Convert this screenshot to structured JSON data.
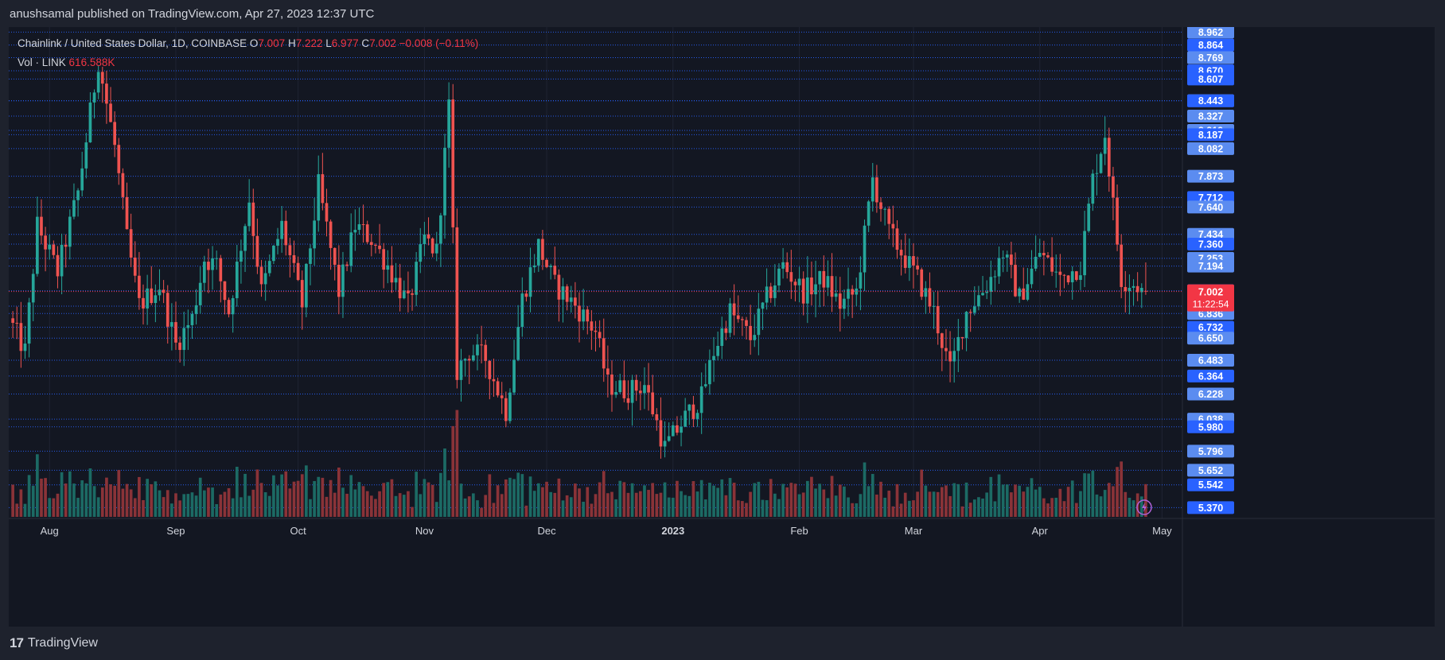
{
  "header": {
    "published_line": "anushsamal published on TradingView.com, Apr 27, 2023 12:37 UTC"
  },
  "legend": {
    "symbol": "Chainlink / United States Dollar, 1D, COINBASE",
    "o_label": "O",
    "o_value": "7.007",
    "h_label": "H",
    "h_value": "7.222",
    "l_label": "L",
    "l_value": "6.977",
    "c_label": "C",
    "c_value": "7.002",
    "change": "−0.008 (−0.11%)",
    "vol_label": "Vol · LINK",
    "vol_value": "616.588K"
  },
  "footer": {
    "brand": "TradingView",
    "logo_text": "17"
  },
  "colors": {
    "background": "#131722",
    "page_background": "#1e222d",
    "up": "#26a69a",
    "down": "#ef5350",
    "up_volume": "#1c6a64",
    "down_volume": "#8a3338",
    "level_line": "#2962ff",
    "price_label_bg": "#2962ff",
    "price_label_bg_alt": "#5b8cf0",
    "current_price_bg": "#f23645",
    "grid": "#1f2433",
    "text": "#d1d4dc"
  },
  "chart_data": {
    "type": "candlestick",
    "title": "Chainlink / United States Dollar, 1D, COINBASE",
    "currency_label": "USD",
    "ylim": [
      5.3,
      9.0
    ],
    "current_price_label": "7.002",
    "countdown_label": "11:22:54",
    "x_ticks": [
      {
        "label": "Aug",
        "date": "2022-08-01",
        "bold": false
      },
      {
        "label": "Sep",
        "date": "2022-09-01",
        "bold": false
      },
      {
        "label": "Oct",
        "date": "2022-10-01",
        "bold": false
      },
      {
        "label": "Nov",
        "date": "2022-11-01",
        "bold": false
      },
      {
        "label": "Dec",
        "date": "2022-12-01",
        "bold": false
      },
      {
        "label": "2023",
        "date": "2023-01-01",
        "bold": true
      },
      {
        "label": "Feb",
        "date": "2023-02-01",
        "bold": false
      },
      {
        "label": "Mar",
        "date": "2023-03-01",
        "bold": false
      },
      {
        "label": "Apr",
        "date": "2023-04-01",
        "bold": false
      },
      {
        "label": "May",
        "date": "2023-05-01",
        "bold": false
      }
    ],
    "horizontal_levels": [
      8.962,
      8.864,
      8.769,
      8.67,
      8.607,
      8.444,
      8.443,
      8.327,
      8.219,
      8.187,
      8.082,
      7.873,
      7.712,
      7.64,
      7.434,
      7.36,
      7.253,
      7.194,
      7.008,
      6.892,
      6.836,
      6.732,
      6.65,
      6.483,
      6.364,
      6.228,
      6.038,
      5.98,
      5.796,
      5.652,
      5.542,
      5.37
    ],
    "price_labels": [
      {
        "value": "8.962",
        "style": "light"
      },
      {
        "value": "8.864",
        "style": "dark"
      },
      {
        "value": "8.769",
        "style": "light"
      },
      {
        "value": "8.670",
        "style": "dark"
      },
      {
        "value": "8.607",
        "style": "dark"
      },
      {
        "value": "8.444",
        "style": "light"
      },
      {
        "value": "8.443",
        "style": "dark"
      },
      {
        "value": "8.327",
        "style": "light"
      },
      {
        "value": "8.219",
        "style": "light"
      },
      {
        "value": "8.187",
        "style": "dark"
      },
      {
        "value": "8.082",
        "style": "light"
      },
      {
        "value": "7.873",
        "style": "light"
      },
      {
        "value": "7.712",
        "style": "dark"
      },
      {
        "value": "7.640",
        "style": "light"
      },
      {
        "value": "7.434",
        "style": "light"
      },
      {
        "value": "7.360",
        "style": "dark"
      },
      {
        "value": "7.253",
        "style": "light"
      },
      {
        "value": "7.194",
        "style": "light"
      },
      {
        "value": "7.008",
        "style": "dark"
      },
      {
        "value": "6.892",
        "style": "light"
      },
      {
        "value": "6.836",
        "style": "light"
      },
      {
        "value": "6.732",
        "style": "dark"
      },
      {
        "value": "6.650",
        "style": "light"
      },
      {
        "value": "6.483",
        "style": "light"
      },
      {
        "value": "6.364",
        "style": "dark"
      },
      {
        "value": "6.228",
        "style": "light"
      },
      {
        "value": "6.038",
        "style": "light"
      },
      {
        "value": "5.980",
        "style": "dark"
      },
      {
        "value": "5.796",
        "style": "light"
      },
      {
        "value": "5.652",
        "style": "light"
      },
      {
        "value": "5.542",
        "style": "dark"
      },
      {
        "value": "5.370",
        "style": "dark"
      }
    ],
    "anchors": [
      {
        "date": "2022-07-23",
        "close": 6.8
      },
      {
        "date": "2022-07-27",
        "close": 6.55
      },
      {
        "date": "2022-07-30",
        "close": 7.5
      },
      {
        "date": "2022-08-04",
        "close": 7.15
      },
      {
        "date": "2022-08-09",
        "close": 7.75
      },
      {
        "date": "2022-08-14",
        "close": 8.75
      },
      {
        "date": "2022-08-18",
        "close": 8.1
      },
      {
        "date": "2022-08-21",
        "close": 7.4
      },
      {
        "date": "2022-08-24",
        "close": 6.9
      },
      {
        "date": "2022-08-29",
        "close": 7.05
      },
      {
        "date": "2022-09-02",
        "close": 6.6
      },
      {
        "date": "2022-09-06",
        "close": 6.8
      },
      {
        "date": "2022-09-09",
        "close": 7.25
      },
      {
        "date": "2022-09-12",
        "close": 7.2
      },
      {
        "date": "2022-09-15",
        "close": 6.85
      },
      {
        "date": "2022-09-20",
        "close": 7.7
      },
      {
        "date": "2022-09-23",
        "close": 7.0
      },
      {
        "date": "2022-09-28",
        "close": 7.5
      },
      {
        "date": "2022-10-03",
        "close": 6.9
      },
      {
        "date": "2022-10-07",
        "close": 7.8
      },
      {
        "date": "2022-10-12",
        "close": 7.0
      },
      {
        "date": "2022-10-16",
        "close": 7.5
      },
      {
        "date": "2022-10-20",
        "close": 7.4
      },
      {
        "date": "2022-10-24",
        "close": 7.2
      },
      {
        "date": "2022-10-29",
        "close": 6.9
      },
      {
        "date": "2022-11-02",
        "close": 7.4
      },
      {
        "date": "2022-11-05",
        "close": 7.3
      },
      {
        "date": "2022-11-08",
        "close": 8.4
      },
      {
        "date": "2022-11-10",
        "close": 6.4
      },
      {
        "date": "2022-11-13",
        "close": 6.55
      },
      {
        "date": "2022-11-17",
        "close": 6.5
      },
      {
        "date": "2022-11-22",
        "close": 6.1
      },
      {
        "date": "2022-11-26",
        "close": 6.95
      },
      {
        "date": "2022-11-30",
        "close": 7.35
      },
      {
        "date": "2022-12-04",
        "close": 7.05
      },
      {
        "date": "2022-12-09",
        "close": 6.9
      },
      {
        "date": "2022-12-14",
        "close": 6.7
      },
      {
        "date": "2022-12-17",
        "close": 6.3
      },
      {
        "date": "2022-12-22",
        "close": 6.25
      },
      {
        "date": "2022-12-26",
        "close": 6.3
      },
      {
        "date": "2022-12-31",
        "close": 5.82
      },
      {
        "date": "2023-01-05",
        "close": 6.05
      },
      {
        "date": "2023-01-09",
        "close": 6.2
      },
      {
        "date": "2023-01-12",
        "close": 6.55
      },
      {
        "date": "2023-01-16",
        "close": 6.85
      },
      {
        "date": "2023-01-21",
        "close": 6.65
      },
      {
        "date": "2023-01-25",
        "close": 6.95
      },
      {
        "date": "2023-01-29",
        "close": 7.2
      },
      {
        "date": "2023-02-03",
        "close": 7.0
      },
      {
        "date": "2023-02-08",
        "close": 7.1
      },
      {
        "date": "2023-02-12",
        "close": 6.9
      },
      {
        "date": "2023-02-16",
        "close": 7.0
      },
      {
        "date": "2023-02-20",
        "close": 7.85
      },
      {
        "date": "2023-02-24",
        "close": 7.45
      },
      {
        "date": "2023-02-28",
        "close": 7.25
      },
      {
        "date": "2023-03-03",
        "close": 7.1
      },
      {
        "date": "2023-03-07",
        "close": 6.85
      },
      {
        "date": "2023-03-11",
        "close": 6.4
      },
      {
        "date": "2023-03-15",
        "close": 6.85
      },
      {
        "date": "2023-03-20",
        "close": 7.05
      },
      {
        "date": "2023-03-24",
        "close": 7.3
      },
      {
        "date": "2023-03-28",
        "close": 6.95
      },
      {
        "date": "2023-04-02",
        "close": 7.3
      },
      {
        "date": "2023-04-07",
        "close": 7.1
      },
      {
        "date": "2023-04-12",
        "close": 7.2
      },
      {
        "date": "2023-04-15",
        "close": 7.85
      },
      {
        "date": "2023-04-18",
        "close": 8.2
      },
      {
        "date": "2023-04-22",
        "close": 7.1
      },
      {
        "date": "2023-04-26",
        "close": 7.05
      },
      {
        "date": "2023-04-27",
        "close": 7.002
      }
    ]
  }
}
